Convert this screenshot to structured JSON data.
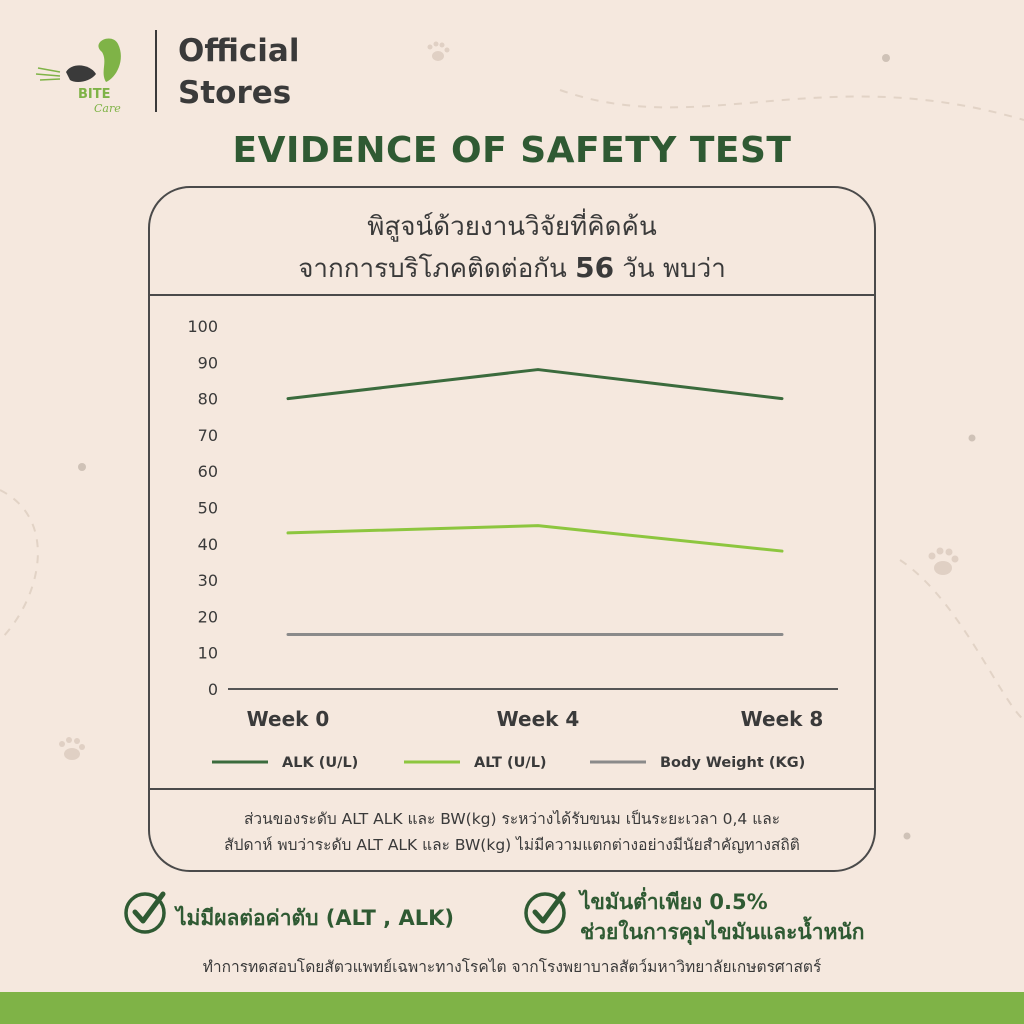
{
  "brand": {
    "logo_text": "BITE Care",
    "store_line_1": "Official",
    "store_line_2": "Stores"
  },
  "title": "EVIDENCE OF SAFETY TEST",
  "card": {
    "heading_line_1": "พิสูจน์ด้วยงานวิจัยที่คิดค้น",
    "heading_line_2_prefix": "จากการบริโภคติดต่อกัน",
    "heading_line_2_number": "56",
    "heading_line_2_suffix": "วัน พบว่า",
    "footnote_line_1": "ส่วนของระดับ ALT ALK และ BW(kg) ระหว่างได้รับขนม เป็นระยะเวลา 0,4 และ",
    "footnote_line_2": "สัปดาห์ พบว่าระดับ ALT ALK และ BW(kg) ไม่มีความแตกต่างอย่างมีนัยสำคัญทางสถิติ"
  },
  "chart_data": {
    "type": "line",
    "title": "",
    "xlabel": "",
    "ylabel": "",
    "categories": [
      "Week 0",
      "Week 4",
      "Week 8"
    ],
    "yticks": [
      0,
      10,
      20,
      30,
      40,
      50,
      60,
      70,
      80,
      90,
      100
    ],
    "ylim": [
      0,
      100
    ],
    "grid": false,
    "legend_position": "bottom",
    "series": [
      {
        "name": "ALK (U/L)",
        "values": [
          80,
          88,
          80
        ],
        "color": "#3b6b3d"
      },
      {
        "name": "ALT (U/L)",
        "values": [
          43,
          45,
          38
        ],
        "color": "#8dc63f"
      },
      {
        "name": "Body Weight (KG)",
        "values": [
          15,
          15,
          15
        ],
        "color": "#8a8a8a"
      }
    ]
  },
  "badges": [
    {
      "icon": "check-circle-icon",
      "text": "ไม่มีผลต่อค่าตับ (ALT , ALK)"
    },
    {
      "icon": "check-circle-icon",
      "text_line_1": "ไขมันต่ำเพียง 0.5%",
      "text_line_2": "ช่วยในการคุมไขมันและน้ำหนัก"
    }
  ],
  "bottom_note": "ทำการทดสอบโดยสัตวแพทย์เฉพาะทางโรคไต จากโรงพยาบาลสัตว์มหาวิทยาลัยเกษตรศาสตร์",
  "colors": {
    "background": "#f5e8de",
    "title_green": "#2f5a33",
    "accent_green": "#7fb347",
    "border": "#4a4a4a"
  }
}
